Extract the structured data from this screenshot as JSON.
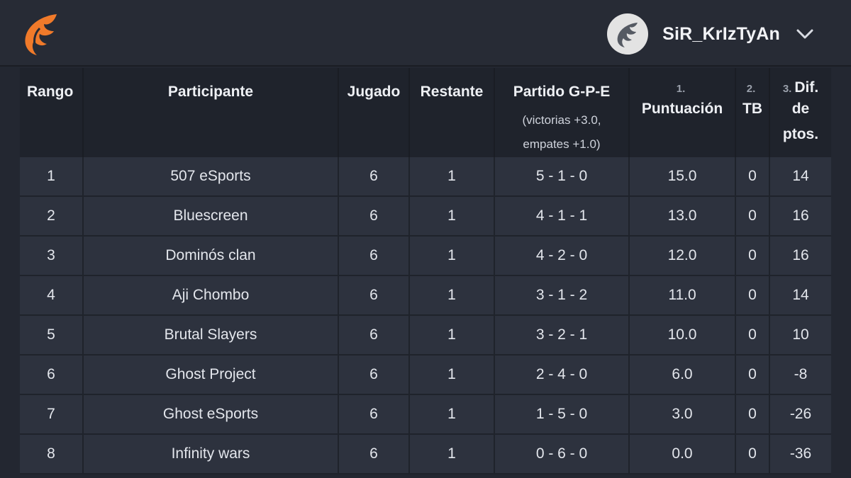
{
  "header": {
    "username": "SiR_KrIzTyAn",
    "logo_icon": "wing-logo-icon",
    "accent_color": "#f07a2a"
  },
  "table": {
    "columns": {
      "rank": "Rango",
      "participant": "Participante",
      "played": "Jugado",
      "remaining": "Restante",
      "matches": "Partido G-P-E",
      "matches_sub1": "(victorias +3.0,",
      "matches_sub2": "empates +1.0)",
      "score_num": "1.",
      "score": "Puntuación",
      "tb_num": "2.",
      "tb": "TB",
      "diff_num": "3.",
      "diff_l1": "Dif.",
      "diff_l2": "de",
      "diff_l3": "ptos."
    },
    "rows": [
      {
        "rank": "1",
        "participant": "507 eSports",
        "played": "6",
        "remaining": "1",
        "record": "5 - 1 - 0",
        "score": "15.0",
        "tb": "0",
        "diff": "14"
      },
      {
        "rank": "2",
        "participant": "Bluescreen",
        "played": "6",
        "remaining": "1",
        "record": "4 - 1 - 1",
        "score": "13.0",
        "tb": "0",
        "diff": "16"
      },
      {
        "rank": "3",
        "participant": "Dominós clan",
        "played": "6",
        "remaining": "1",
        "record": "4 - 2 - 0",
        "score": "12.0",
        "tb": "0",
        "diff": "16"
      },
      {
        "rank": "4",
        "participant": "Aji Chombo",
        "played": "6",
        "remaining": "1",
        "record": "3 - 1 - 2",
        "score": "11.0",
        "tb": "0",
        "diff": "14"
      },
      {
        "rank": "5",
        "participant": "Brutal Slayers",
        "played": "6",
        "remaining": "1",
        "record": "3 - 2 - 1",
        "score": "10.0",
        "tb": "0",
        "diff": "10"
      },
      {
        "rank": "6",
        "participant": "Ghost Project",
        "played": "6",
        "remaining": "1",
        "record": "2 - 4 - 0",
        "score": "6.0",
        "tb": "0",
        "diff": "-8"
      },
      {
        "rank": "7",
        "participant": "Ghost eSports",
        "played": "6",
        "remaining": "1",
        "record": "1 - 5 - 0",
        "score": "3.0",
        "tb": "0",
        "diff": "-26"
      },
      {
        "rank": "8",
        "participant": "Infinity wars",
        "played": "6",
        "remaining": "1",
        "record": "0 - 6 - 0",
        "score": "0.0",
        "tb": "0",
        "diff": "-36"
      }
    ]
  }
}
